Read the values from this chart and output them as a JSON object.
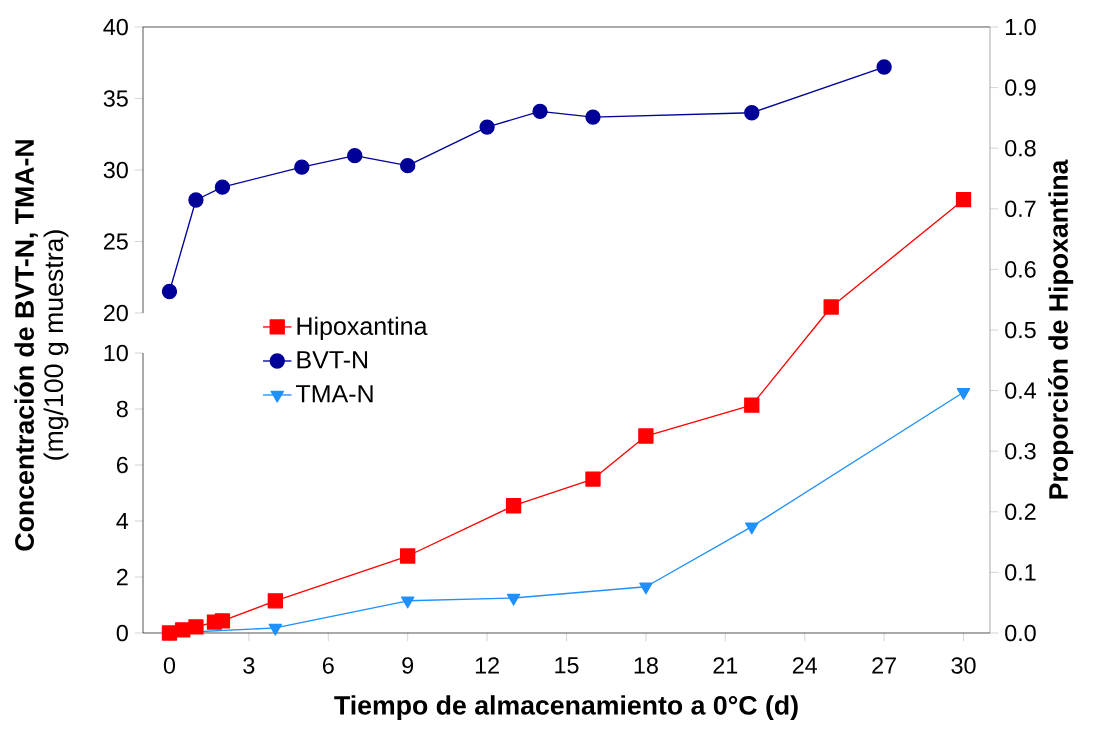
{
  "chart_data": [
    {
      "type": "line",
      "x": [
        0,
        1,
        2,
        5,
        7,
        9,
        12,
        14,
        16,
        22,
        27
      ],
      "xlim": [
        -1,
        31
      ],
      "ylim": [
        20,
        40
      ],
      "yticks": [
        20,
        25,
        30,
        35,
        40
      ],
      "tick_labels": "y",
      "marker": "circle",
      "line_style": "solid",
      "legend": "left",
      "series": [
        {
          "name": "BVT-N",
          "color": "#000099",
          "values": [
            21.5,
            27.9,
            28.8,
            30.2,
            31.0,
            30.3,
            33.0,
            34.1,
            33.7,
            34.0,
            37.2
          ]
        }
      ]
    },
    {
      "type": "line",
      "xlabel": "Tiempo de almacenamiento a 0°C (d)",
      "ylabel": "Concentración de BVT-N, TMA-N",
      "annotations": [
        "(mg/100 g muestra)"
      ],
      "y2label": "Proporción de Hipoxantina",
      "xlim": [
        -1,
        31
      ],
      "xticks": [
        0,
        3,
        6,
        9,
        12,
        15,
        18,
        21,
        24,
        27,
        30
      ],
      "ylim": [
        0,
        10
      ],
      "yticks": [
        0,
        2,
        4,
        6,
        8,
        10
      ],
      "y2lim": [
        0,
        1
      ],
      "y2ticks": [
        {
          "value": 0,
          "label": "0.0"
        },
        {
          "value": 0.1,
          "label": "0.1"
        },
        {
          "value": 0.2,
          "label": "0.2"
        },
        {
          "value": 0.3,
          "label": "0.3"
        },
        {
          "value": 0.4,
          "label": "0.4"
        },
        {
          "value": 0.5,
          "label": "0.5"
        },
        {
          "value": 0.6,
          "label": "0.6"
        },
        {
          "value": 0.7,
          "label": "0.7"
        },
        {
          "value": 0.8,
          "label": "0.8"
        },
        {
          "value": 0.9,
          "label": "0.9"
        },
        {
          "value": 1,
          "label": "1.0"
        }
      ],
      "legend": "left",
      "line_style": "solid",
      "series": [
        {
          "name": "Hipoxantina",
          "color": "#ff0000",
          "axis": "y2",
          "marker": "square",
          "x": [
            0,
            0.5,
            1,
            1.7,
            2,
            4,
            9,
            13,
            16,
            18,
            22,
            25,
            30
          ],
          "values": [
            0,
            0.005,
            0.01,
            0.018,
            0.02,
            0.053,
            0.127,
            0.21,
            0.254,
            0.325,
            0.376,
            0.538,
            0.715
          ]
        },
        {
          "name": "TMA-N",
          "color": "#1e90ff",
          "marker": "triangle",
          "x": [
            0,
            4,
            9,
            13,
            18,
            22,
            30
          ],
          "values": [
            0,
            0.18,
            1.15,
            1.25,
            1.65,
            3.8,
            8.6
          ]
        }
      ]
    }
  ]
}
